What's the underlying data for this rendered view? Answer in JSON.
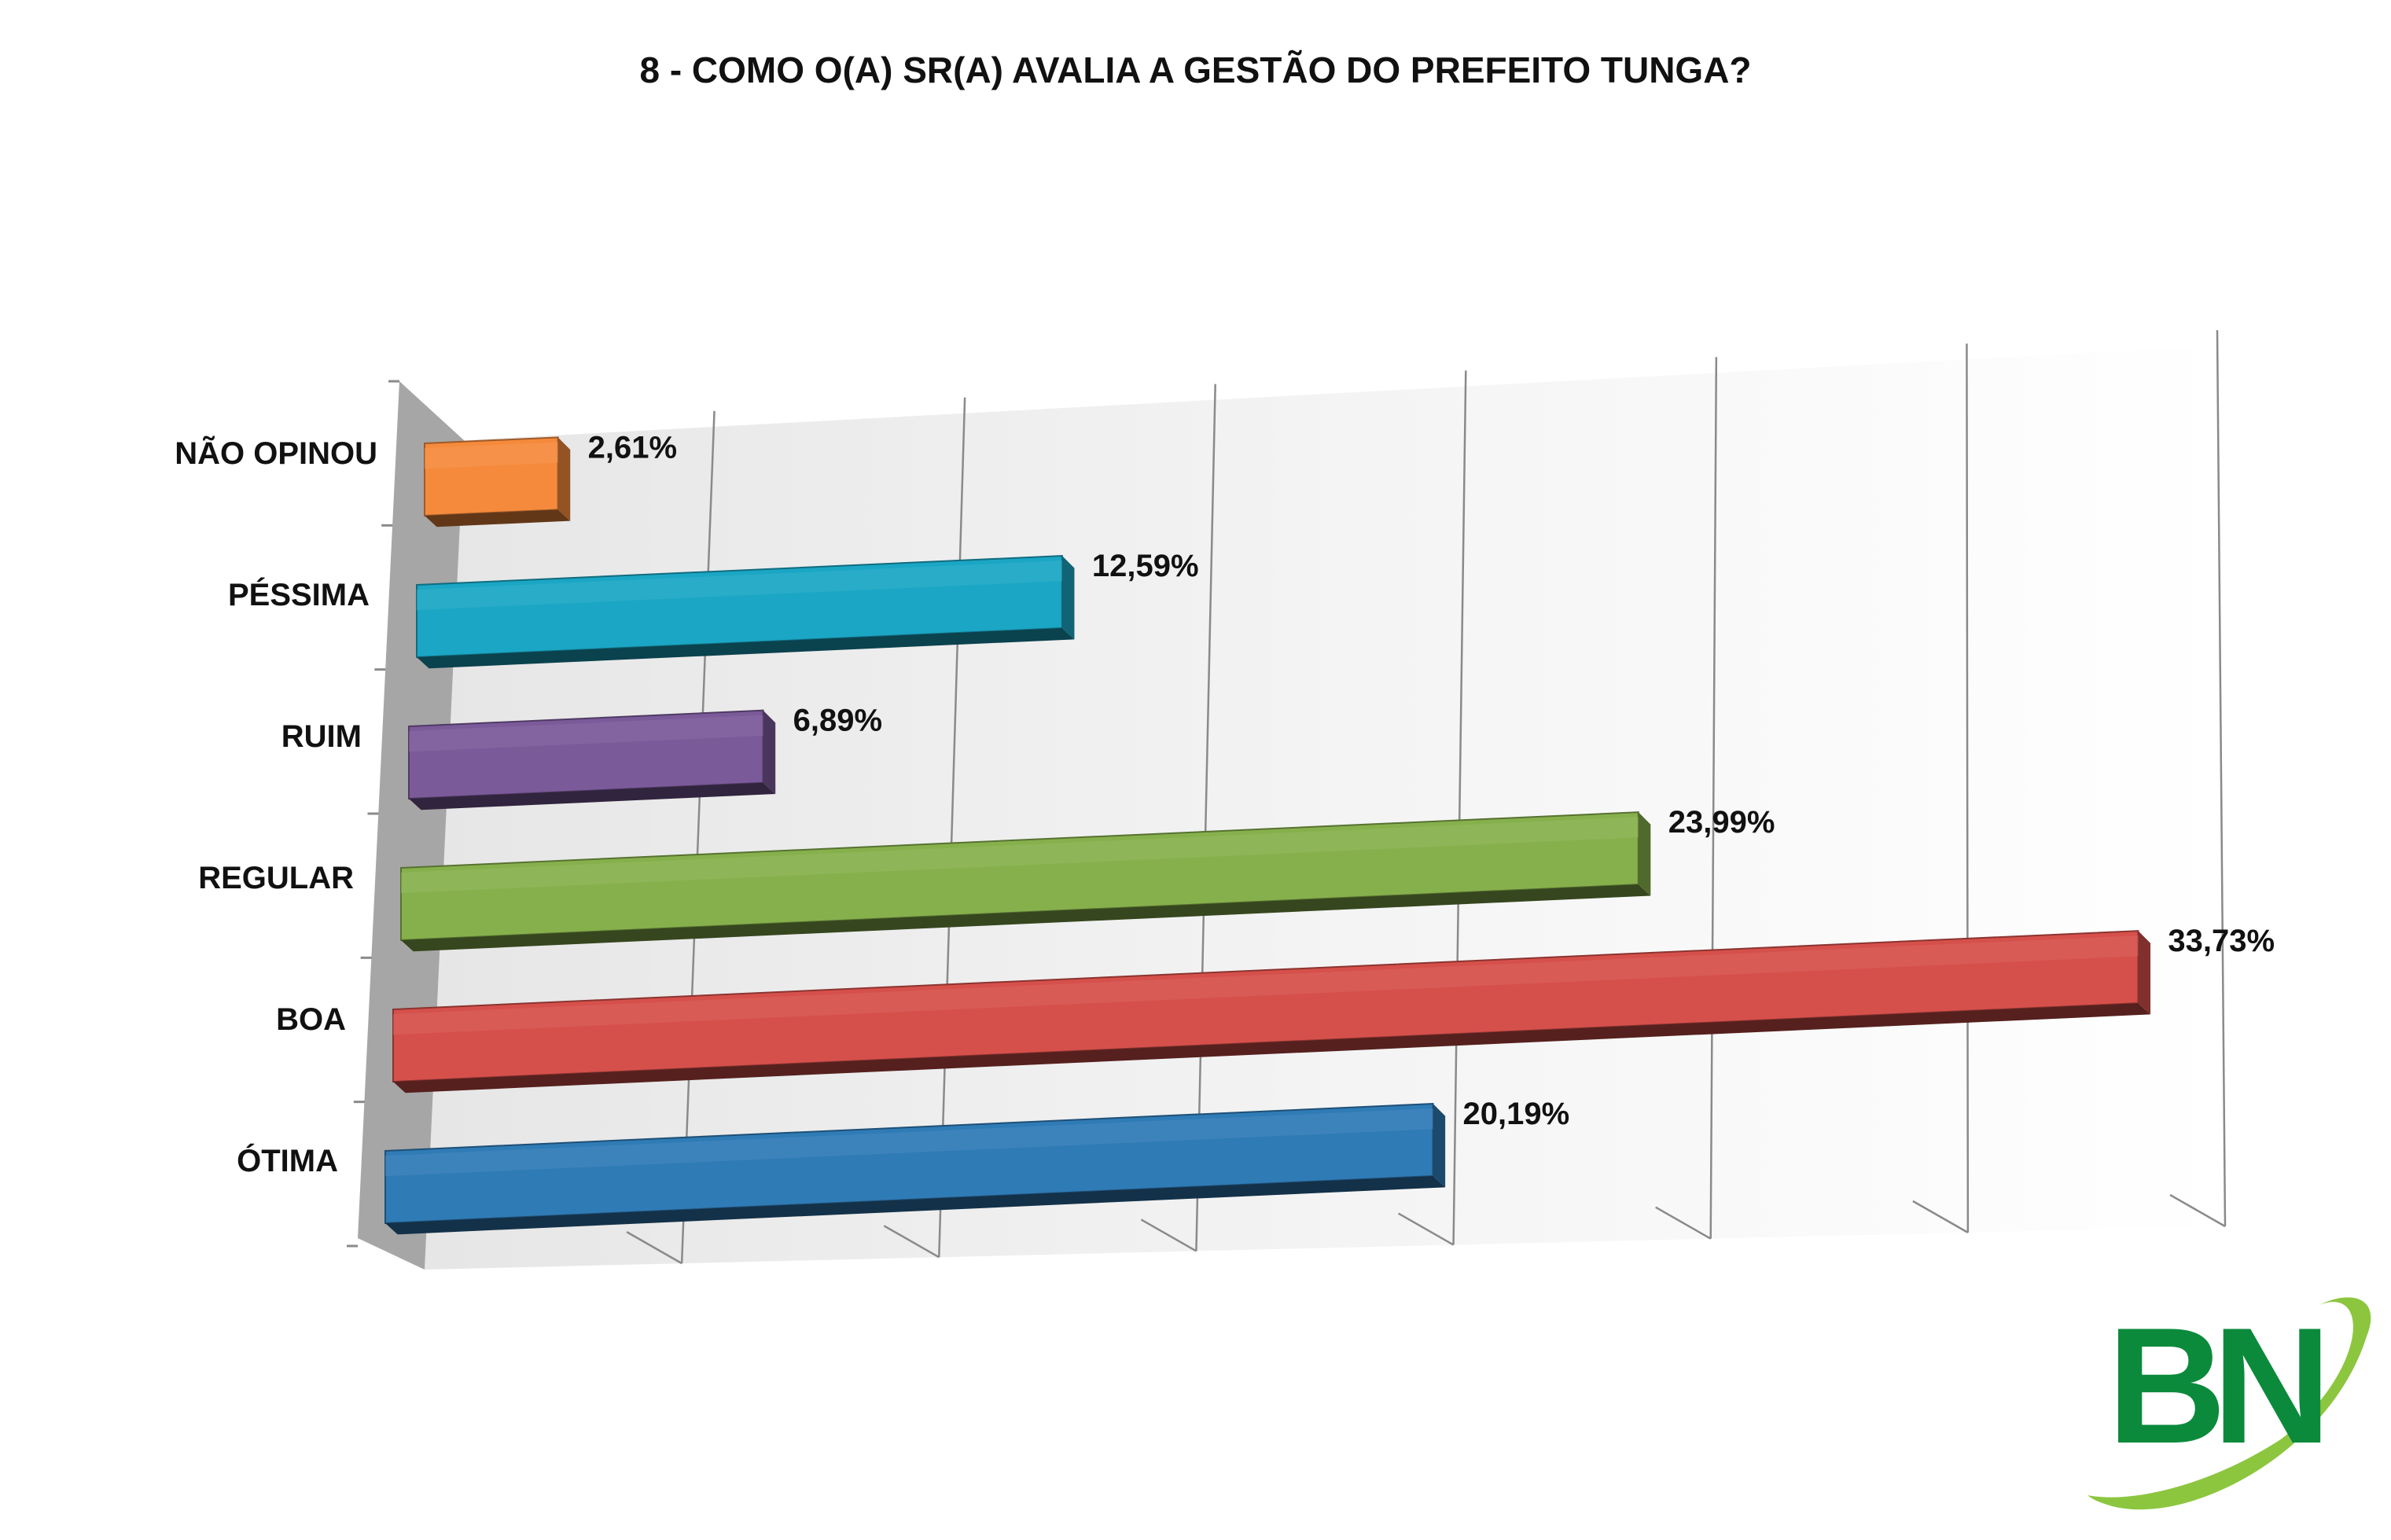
{
  "chart_data": {
    "type": "bar",
    "orientation": "horizontal",
    "style": "3d",
    "title": "8 - COMO O(A) SR(A) AVALIA A GESTÃO DO PREFEITO TUNGA?",
    "categories": [
      "NÃO OPINOU",
      "PÉSSIMA",
      "RUIM",
      "REGULAR",
      "BOA",
      "ÓTIMA"
    ],
    "values": [
      2.61,
      12.59,
      6.89,
      23.99,
      33.73,
      20.19
    ],
    "value_labels": [
      "2,61%",
      "12,59%",
      "6,89%",
      "23,99%",
      "33,73%",
      "20,19%"
    ],
    "colors": [
      "#f58a3c",
      "#1aa6c4",
      "#7b5a9a",
      "#86b04c",
      "#d6504b",
      "#2f7bb6"
    ],
    "xlim": [
      0,
      35
    ],
    "grid": true,
    "legend": "none",
    "xlabel": "",
    "ylabel": ""
  },
  "logo": {
    "text": "BN",
    "colors": {
      "letters": "#0b8a3c",
      "swoosh": "#8cc63f"
    }
  }
}
